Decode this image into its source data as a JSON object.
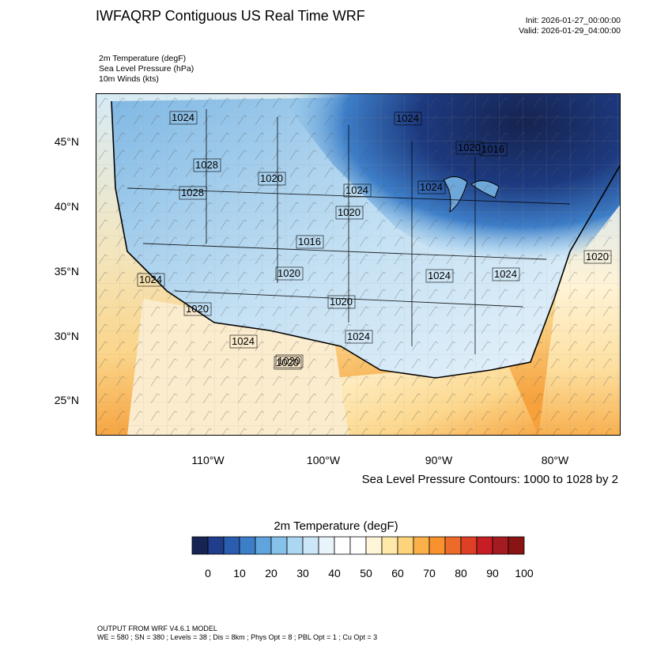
{
  "header": {
    "title": "IWFAQRP Contiguous US Real Time WRF",
    "init": "Init: 2026-01-27_00:00:00",
    "valid": "Valid: 2026-01-29_04:00:00"
  },
  "fields": [
    "2m Temperature   (degF)",
    "Sea Level Pressure   (hPa)",
    "10m Winds   (kts)"
  ],
  "map": {
    "lat_labels": [
      "45°N",
      "40°N",
      "35°N",
      "30°N",
      "25°N"
    ],
    "lon_labels": [
      "110°W",
      "100°W",
      "90°W",
      "80°W"
    ],
    "contour_labels": [
      "1024",
      "1024",
      "1020",
      "1016",
      "1028",
      "1020",
      "1024",
      "1028",
      "1020",
      "1024",
      "1016",
      "1024",
      "1020",
      "1024",
      "1020",
      "1024",
      "1020",
      "1020",
      "1024",
      "1020",
      "1024",
      "1020"
    ],
    "contour_note": "Sea Level Pressure Contours: 1000 to 1028 by 2"
  },
  "colorbar": {
    "title": "2m Temperature  (degF)",
    "labels": [
      "0",
      "10",
      "20",
      "30",
      "40",
      "50",
      "60",
      "70",
      "80",
      "90",
      "100"
    ],
    "colors": [
      "#162453",
      "#1f3d8a",
      "#2a5db0",
      "#3d7ec8",
      "#5fa4dc",
      "#86c1ea",
      "#abd7f2",
      "#cbe6f6",
      "#e8f3fa",
      "#ffffff",
      "#ffffff",
      "#fff5d8",
      "#ffe8a8",
      "#fdd47c",
      "#fcb04a",
      "#f7922f",
      "#ec6a2a",
      "#de4027",
      "#c71e25",
      "#a51b22",
      "#8a1414"
    ]
  },
  "footer": {
    "line1": "OUTPUT FROM WRF V4.6.1 MODEL",
    "line2": "WE = 580 ; SN = 380 ; Levels = 38 ; Dis = 8km ; Phys Opt = 8 ; PBL Opt = 1 ; Cu Opt = 3"
  }
}
